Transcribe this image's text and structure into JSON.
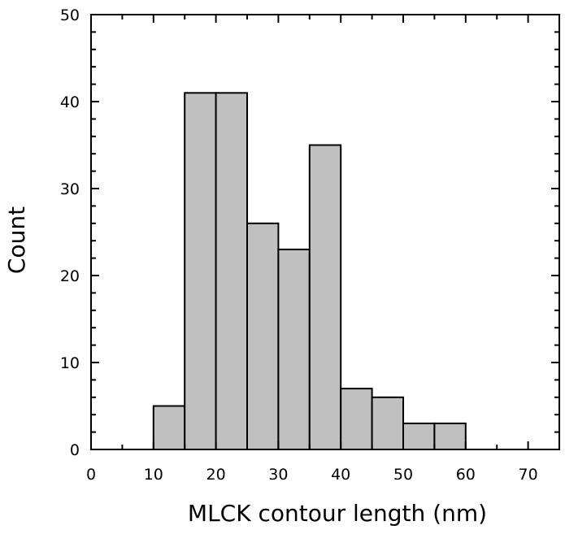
{
  "chart_data": {
    "type": "bar",
    "xlabel": "MLCK contour length (nm)",
    "ylabel": "Count",
    "xlim": [
      0,
      75
    ],
    "ylim": [
      0,
      50
    ],
    "x_ticks": [
      0,
      10,
      20,
      30,
      40,
      50,
      60,
      70
    ],
    "y_ticks": [
      0,
      10,
      20,
      30,
      40,
      50
    ],
    "bins": [
      {
        "start": 10,
        "end": 15,
        "value": 5
      },
      {
        "start": 15,
        "end": 20,
        "value": 41
      },
      {
        "start": 20,
        "end": 25,
        "value": 41
      },
      {
        "start": 25,
        "end": 30,
        "value": 26
      },
      {
        "start": 30,
        "end": 35,
        "value": 23
      },
      {
        "start": 35,
        "end": 40,
        "value": 35
      },
      {
        "start": 40,
        "end": 45,
        "value": 7
      },
      {
        "start": 45,
        "end": 50,
        "value": 6
      },
      {
        "start": 50,
        "end": 55,
        "value": 3
      },
      {
        "start": 55,
        "end": 60,
        "value": 3
      }
    ],
    "grid": false,
    "bar_color": "#c0c0c0",
    "edge_color": "#000000"
  }
}
